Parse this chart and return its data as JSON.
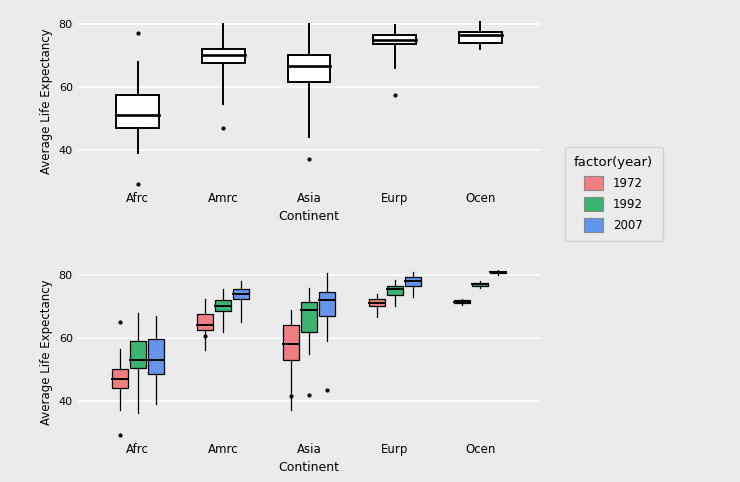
{
  "continents": [
    "Afrc",
    "Amrc",
    "Asia",
    "Eurp",
    "Ocen"
  ],
  "background_color": "#EBEBEB",
  "grid_color": "#FFFFFF",
  "top_boxes": {
    "Afrc": {
      "q1": 47.0,
      "median": 51.0,
      "q3": 57.5,
      "whislo": 39.0,
      "whishi": 68.0,
      "fliers": [
        29.0,
        77.0
      ]
    },
    "Amrc": {
      "q1": 67.5,
      "median": 70.0,
      "q3": 72.0,
      "whislo": 54.5,
      "whishi": 80.0,
      "fliers": [
        47.0
      ]
    },
    "Asia": {
      "q1": 61.5,
      "median": 66.5,
      "q3": 70.0,
      "whislo": 44.0,
      "whishi": 80.0,
      "fliers": [
        37.0
      ]
    },
    "Eurp": {
      "q1": 73.5,
      "median": 75.0,
      "q3": 76.5,
      "whislo": 66.0,
      "whishi": 79.5,
      "fliers": [
        57.5
      ]
    },
    "Ocen": {
      "q1": 74.0,
      "median": 76.5,
      "q3": 77.5,
      "whislo": 72.0,
      "whishi": 80.5,
      "fliers": []
    }
  },
  "bottom_boxes": {
    "Afrc": {
      "1972": {
        "q1": 44.0,
        "median": 47.0,
        "q3": 50.0,
        "whislo": 37.0,
        "whishi": 56.5,
        "fliers": [
          29.0,
          65.0
        ]
      },
      "1992": {
        "q1": 50.5,
        "median": 53.0,
        "q3": 59.0,
        "whislo": 36.0,
        "whishi": 68.0,
        "fliers": []
      },
      "2007": {
        "q1": 48.5,
        "median": 53.0,
        "q3": 59.5,
        "whislo": 39.0,
        "whishi": 67.0,
        "fliers": []
      }
    },
    "Amrc": {
      "1972": {
        "q1": 62.5,
        "median": 64.0,
        "q3": 67.5,
        "whislo": 56.0,
        "whishi": 72.5,
        "fliers": [
          60.5
        ]
      },
      "1992": {
        "q1": 68.5,
        "median": 70.0,
        "q3": 72.0,
        "whislo": 62.0,
        "whishi": 75.5,
        "fliers": []
      },
      "2007": {
        "q1": 72.5,
        "median": 74.0,
        "q3": 75.5,
        "whislo": 65.0,
        "whishi": 78.0,
        "fliers": []
      }
    },
    "Asia": {
      "1972": {
        "q1": 53.0,
        "median": 58.0,
        "q3": 64.0,
        "whislo": 37.0,
        "whishi": 69.0,
        "fliers": [
          41.5
        ]
      },
      "1992": {
        "q1": 62.0,
        "median": 69.0,
        "q3": 71.5,
        "whislo": 55.0,
        "whishi": 76.0,
        "fliers": [
          42.0
        ]
      },
      "2007": {
        "q1": 67.0,
        "median": 72.0,
        "q3": 74.5,
        "whislo": 59.0,
        "whishi": 80.5,
        "fliers": [
          43.5
        ]
      }
    },
    "Eurp": {
      "1972": {
        "q1": 70.0,
        "median": 71.0,
        "q3": 72.5,
        "whislo": 66.5,
        "whishi": 74.0,
        "fliers": []
      },
      "1992": {
        "q1": 73.5,
        "median": 75.5,
        "q3": 76.5,
        "whislo": 70.0,
        "whishi": 78.5,
        "fliers": []
      },
      "2007": {
        "q1": 76.5,
        "median": 78.0,
        "q3": 79.5,
        "whislo": 73.0,
        "whishi": 81.0,
        "fliers": []
      }
    },
    "Ocen": {
      "1972": {
        "q1": 71.0,
        "median": 71.5,
        "q3": 72.0,
        "whislo": 70.5,
        "whishi": 72.5,
        "fliers": []
      },
      "1992": {
        "q1": 76.5,
        "median": 77.0,
        "q3": 77.5,
        "whislo": 76.0,
        "whishi": 78.0,
        "fliers": []
      },
      "2007": {
        "q1": 80.5,
        "median": 80.8,
        "q3": 81.0,
        "whislo": 80.0,
        "whishi": 81.5,
        "fliers": []
      }
    }
  },
  "colors": {
    "1972": "#F08080",
    "1992": "#3CB371",
    "2007": "#6495ED"
  },
  "ylabel": "Average Life Expectancy",
  "xlabel": "Continent",
  "ylim": [
    28,
    83
  ],
  "yticks": [
    40,
    60,
    80
  ],
  "legend_title": "factor(year)"
}
